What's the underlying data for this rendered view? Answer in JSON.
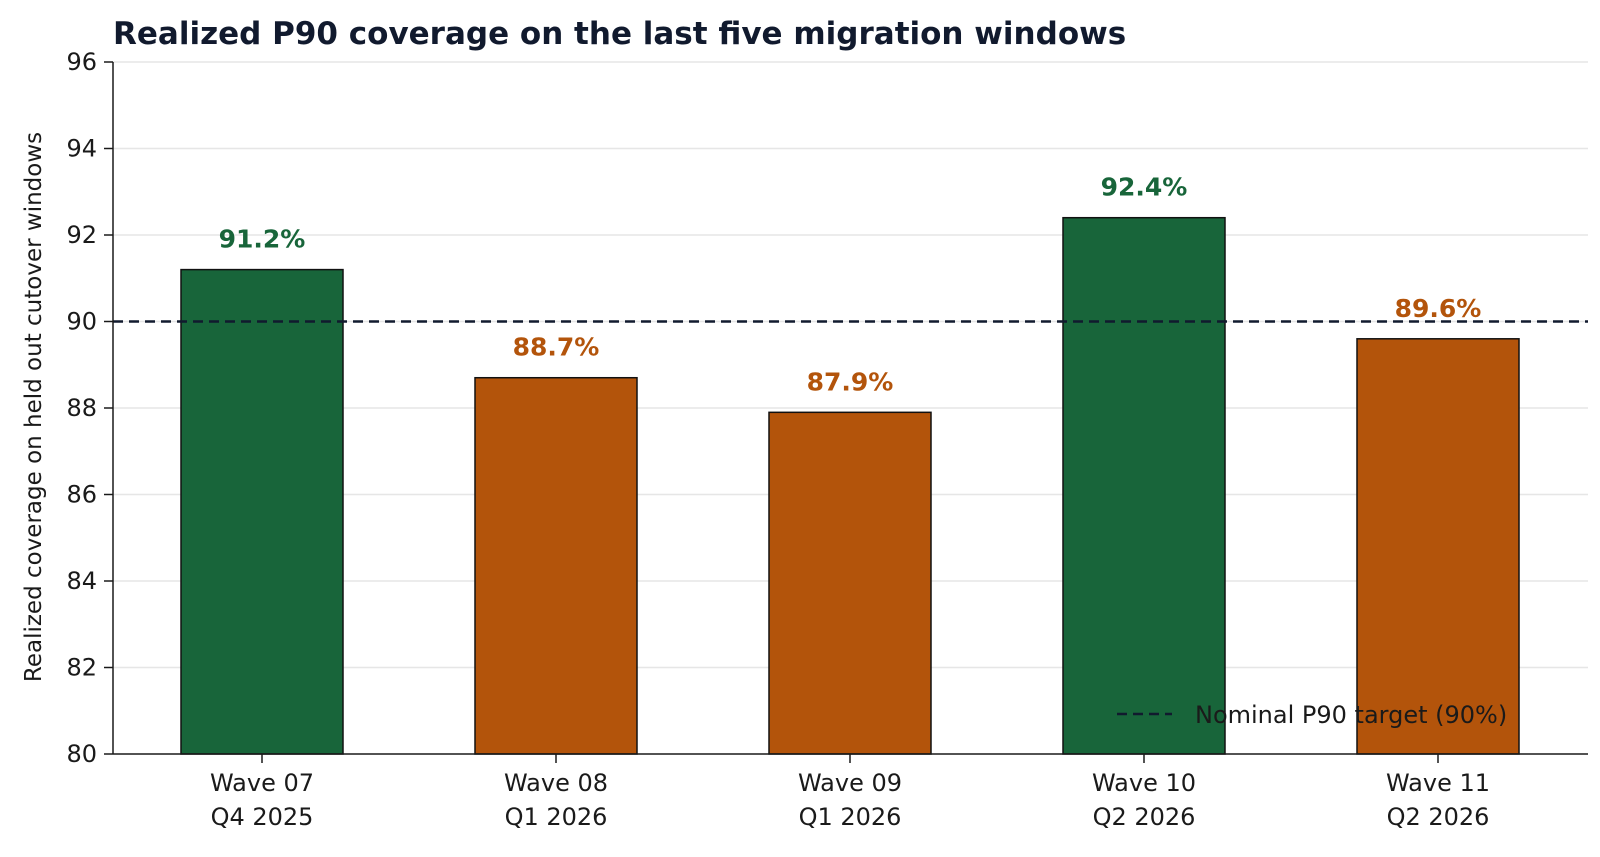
{
  "chart_data": {
    "type": "bar",
    "title": "Realized P90 coverage on the last five migration windows",
    "xlabel": "",
    "ylabel": "Realized coverage on held out cutover windows",
    "categories": [
      [
        "Wave 07",
        "Q4 2025"
      ],
      [
        "Wave 08",
        "Q1 2026"
      ],
      [
        "Wave 09",
        "Q1 2026"
      ],
      [
        "Wave 10",
        "Q2 2026"
      ],
      [
        "Wave 11",
        "Q2 2026"
      ]
    ],
    "values": [
      91.2,
      88.7,
      87.9,
      92.4,
      89.6
    ],
    "value_labels": [
      "91.2%",
      "88.7%",
      "87.9%",
      "92.4%",
      "89.6%"
    ],
    "ylim": [
      80,
      96
    ],
    "yticks": [
      80,
      82,
      84,
      86,
      88,
      90,
      92,
      94,
      96
    ],
    "grid": "horizontal",
    "reference_line": {
      "value": 90,
      "style": "dashed",
      "label": "Nominal P90 target (90%)"
    },
    "legend": {
      "placement": "bottom-right",
      "entries": [
        "Nominal P90 target (90%)"
      ]
    },
    "colors": {
      "meets_target": "#18653a",
      "below_target": "#b3540b",
      "reference": "#111a2e",
      "grid": "#e6e6e6",
      "title": "#111a2e"
    }
  }
}
